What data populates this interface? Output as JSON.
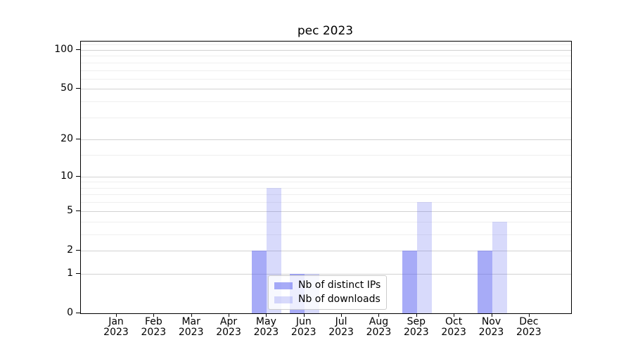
{
  "title": "pec 2023",
  "chart_data": {
    "type": "bar",
    "title": "pec 2023",
    "year": "2023",
    "months": [
      "Jan",
      "Feb",
      "Mar",
      "Apr",
      "May",
      "Jun",
      "Jul",
      "Aug",
      "Sep",
      "Oct",
      "Nov",
      "Dec"
    ],
    "series": [
      {
        "name": "Nb of distinct IPs",
        "color": "rgba(94,102,240,0.55)",
        "values": [
          0,
          0,
          0,
          0,
          2,
          1,
          0,
          0,
          2,
          0,
          2,
          0
        ]
      },
      {
        "name": "Nb of downloads",
        "color": "rgba(94,102,240,0.24)",
        "values": [
          0,
          0,
          0,
          0,
          8,
          1,
          0,
          0,
          6,
          0,
          4,
          0
        ]
      }
    ],
    "y_scale": "log10(1+v)",
    "y_ticks": [
      0,
      1,
      2,
      5,
      10,
      20,
      50,
      100
    ],
    "y_minor_ticks": [
      3,
      4,
      6,
      7,
      8,
      9,
      15,
      30,
      40,
      60,
      70,
      80,
      90,
      110
    ],
    "ylim": [
      0,
      115
    ],
    "grid": true,
    "legend_position": "inside lower-center",
    "colors": {
      "major_grid": "#d2d2d2",
      "minor_grid": "#efefef",
      "spine": "#000000",
      "bar_base": "#5e66f0"
    }
  },
  "legend": {
    "items": [
      {
        "label": "Nb of distinct IPs"
      },
      {
        "label": "Nb of downloads"
      }
    ]
  }
}
